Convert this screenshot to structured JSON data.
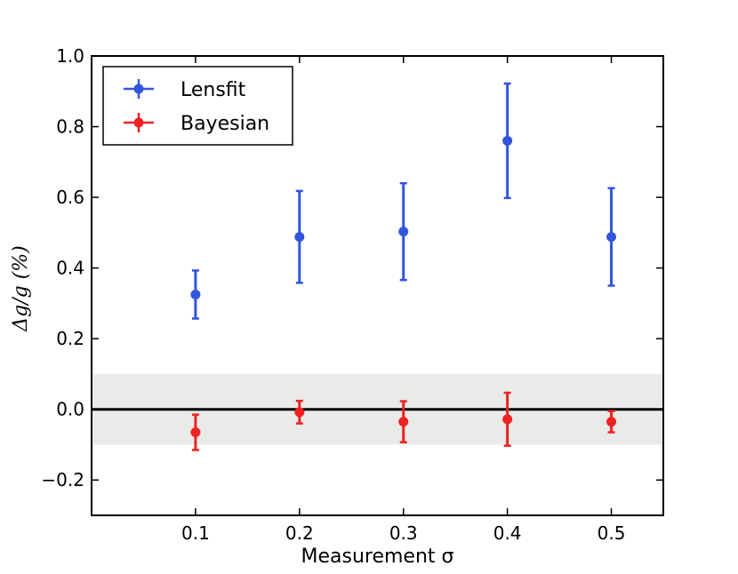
{
  "chart_data": {
    "type": "scatter",
    "xlabel": "Measurement σ",
    "ylabel": "Δg/g  (%)",
    "xlim": [
      0.0,
      0.55
    ],
    "ylim": [
      -0.3,
      1.0
    ],
    "xticks": [
      0.1,
      0.2,
      0.3,
      0.4,
      0.5
    ],
    "xtick_labels": [
      "0.1",
      "0.2",
      "0.3",
      "0.4",
      "0.5"
    ],
    "yticks": [
      -0.2,
      0.0,
      0.2,
      0.4,
      0.6,
      0.8,
      1.0
    ],
    "ytick_labels": [
      "−0.2",
      "0.0",
      "0.2",
      "0.4",
      "0.6",
      "0.8",
      "1.0"
    ],
    "reference_line": 0.0,
    "shaded_band": [
      -0.1,
      0.1
    ],
    "legend_position": "top-left",
    "grid": false,
    "series": [
      {
        "name": "Lensfit",
        "color": "#3355dd",
        "x": [
          0.1,
          0.2,
          0.3,
          0.4,
          0.5
        ],
        "y": [
          0.325,
          0.488,
          0.503,
          0.76,
          0.488
        ],
        "yerr": [
          0.068,
          0.13,
          0.137,
          0.162,
          0.138
        ]
      },
      {
        "name": "Bayesian",
        "color": "#ee2222",
        "x": [
          0.1,
          0.2,
          0.3,
          0.4,
          0.5
        ],
        "y": [
          -0.065,
          -0.008,
          -0.035,
          -0.028,
          -0.035
        ],
        "yerr": [
          0.05,
          0.032,
          0.058,
          0.075,
          0.03
        ]
      }
    ]
  }
}
